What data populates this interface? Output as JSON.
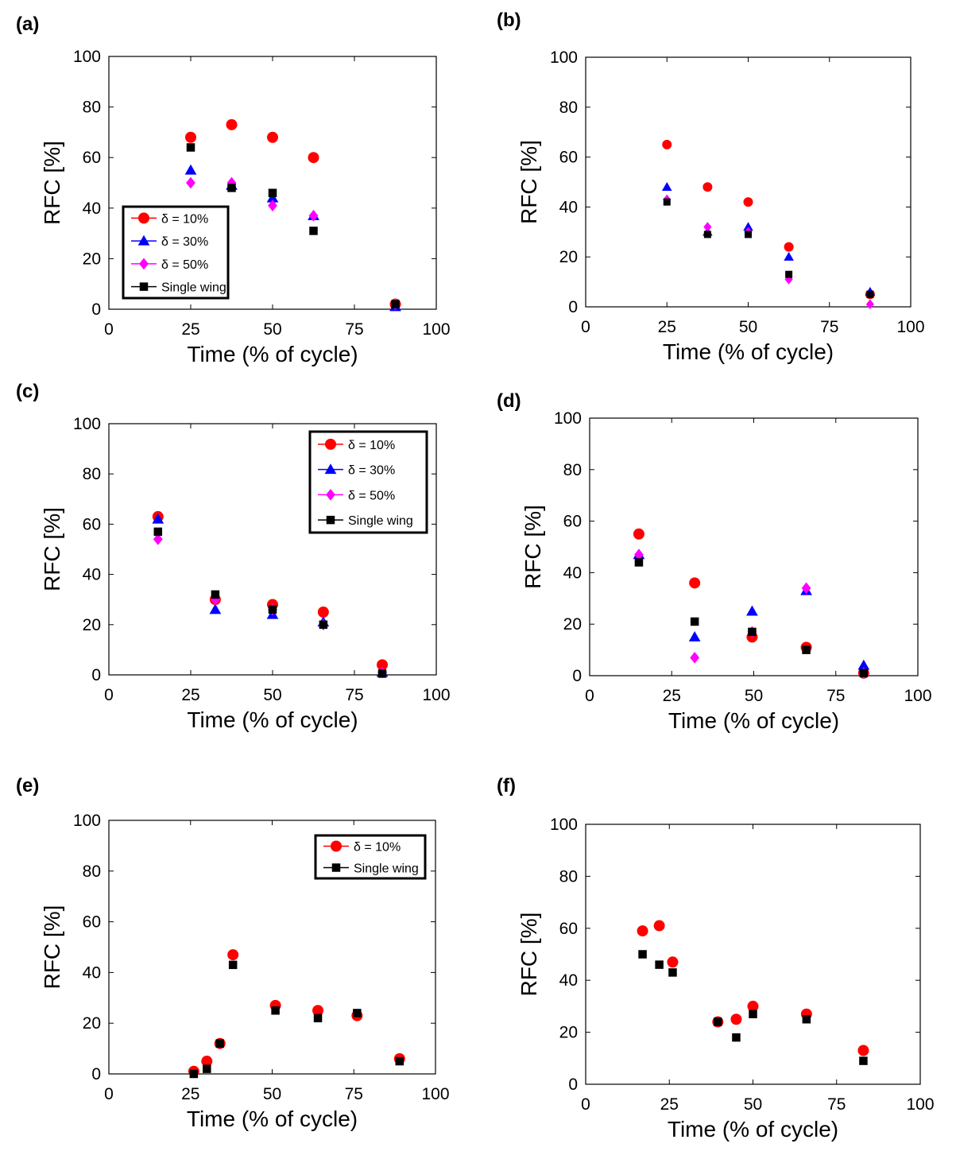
{
  "colors": {
    "delta10": "#ff0000",
    "delta30": "#0000ff",
    "delta50": "#ff00ff",
    "single": "#000000"
  },
  "chart_data": [
    {
      "id": "a",
      "panel_label": "(a)",
      "type": "scatter",
      "xlabel": "Time (% of cycle)",
      "ylabel": "RFC [%]",
      "xlim": [
        0,
        100
      ],
      "ylim": [
        0,
        100
      ],
      "xticks": [
        0,
        25,
        50,
        75,
        100
      ],
      "yticks": [
        0,
        20,
        40,
        60,
        80,
        100
      ],
      "legend_position": "lower-left",
      "series": [
        {
          "name": "δ = 10%",
          "marker": "circle",
          "color_key": "delta10",
          "x": [
            25,
            37.5,
            50,
            62.5,
            87.5
          ],
          "y": [
            68,
            73,
            68,
            60,
            2
          ]
        },
        {
          "name": "δ = 30%",
          "marker": "triangle",
          "color_key": "delta30",
          "x": [
            25,
            37.5,
            50,
            62.5,
            87.5
          ],
          "y": [
            55,
            49,
            44,
            37,
            1
          ]
        },
        {
          "name": "δ = 50%",
          "marker": "diamond",
          "color_key": "delta50",
          "x": [
            25,
            37.5,
            50,
            62.5,
            87.5
          ],
          "y": [
            50,
            50,
            41,
            37,
            2
          ]
        },
        {
          "name": "Single wing",
          "marker": "square",
          "color_key": "single",
          "x": [
            25,
            37.5,
            50,
            62.5,
            87.5
          ],
          "y": [
            64,
            48,
            46,
            31,
            2
          ]
        }
      ]
    },
    {
      "id": "b",
      "panel_label": "(b)",
      "type": "scatter",
      "xlabel": "Time (% of cycle)",
      "ylabel": "RFC [%]",
      "xlim": [
        0,
        100
      ],
      "ylim": [
        0,
        100
      ],
      "xticks": [
        0,
        25,
        50,
        75,
        100
      ],
      "yticks": [
        0,
        20,
        40,
        60,
        80,
        100
      ],
      "legend_position": "none",
      "series": [
        {
          "name": "δ = 10%",
          "marker": "circle",
          "color_key": "delta10",
          "x": [
            25,
            37.5,
            50,
            62.5,
            87.5
          ],
          "y": [
            65,
            48,
            42,
            24,
            5
          ]
        },
        {
          "name": "δ = 30%",
          "marker": "triangle",
          "color_key": "delta30",
          "x": [
            25,
            37.5,
            50,
            62.5,
            87.5
          ],
          "y": [
            48,
            30,
            32,
            20,
            6
          ]
        },
        {
          "name": "δ = 50%",
          "marker": "diamond",
          "color_key": "delta50",
          "x": [
            25,
            37.5,
            50,
            62.5,
            87.5
          ],
          "y": [
            43,
            32,
            30,
            11,
            1
          ]
        },
        {
          "name": "Single wing",
          "marker": "square",
          "color_key": "single",
          "x": [
            25,
            37.5,
            50,
            62.5,
            87.5
          ],
          "y": [
            42,
            29,
            29,
            13,
            5
          ]
        }
      ]
    },
    {
      "id": "c",
      "panel_label": "(c)",
      "type": "scatter",
      "xlabel": "Time (% of cycle)",
      "ylabel": "RFC [%]",
      "xlim": [
        0,
        100
      ],
      "ylim": [
        0,
        100
      ],
      "xticks": [
        0,
        25,
        50,
        75,
        100
      ],
      "yticks": [
        0,
        20,
        40,
        60,
        80,
        100
      ],
      "legend_position": "top-right",
      "series": [
        {
          "name": "δ = 10%",
          "marker": "circle",
          "color_key": "delta10",
          "x": [
            15,
            32.5,
            50,
            65.5,
            83.5
          ],
          "y": [
            63,
            30,
            28,
            25,
            4
          ]
        },
        {
          "name": "δ = 30%",
          "marker": "triangle",
          "color_key": "delta30",
          "x": [
            15,
            32.5,
            50,
            65.5,
            83.5
          ],
          "y": [
            62,
            26,
            24,
            21,
            1
          ]
        },
        {
          "name": "δ = 50%",
          "marker": "diamond",
          "color_key": "delta50",
          "x": [
            15,
            32.5,
            50,
            65.5,
            83.5
          ],
          "y": [
            54,
            30,
            26,
            20,
            1
          ]
        },
        {
          "name": "Single wing",
          "marker": "square",
          "color_key": "single",
          "x": [
            15,
            32.5,
            50,
            65.5,
            83.5
          ],
          "y": [
            57,
            32,
            26,
            20,
            0.5
          ]
        }
      ]
    },
    {
      "id": "d",
      "panel_label": "(d)",
      "type": "scatter",
      "xlabel": "Time (% of cycle)",
      "ylabel": "RFC [%]",
      "xlim": [
        0,
        100
      ],
      "ylim": [
        0,
        100
      ],
      "xticks": [
        0,
        25,
        50,
        75,
        100
      ],
      "yticks": [
        0,
        20,
        40,
        60,
        80,
        100
      ],
      "legend_position": "none",
      "series": [
        {
          "name": "δ = 10%",
          "marker": "circle",
          "color_key": "delta10",
          "x": [
            15,
            32,
            49.5,
            66,
            83.5
          ],
          "y": [
            55,
            36,
            15,
            11,
            1
          ]
        },
        {
          "name": "δ = 30%",
          "marker": "triangle",
          "color_key": "delta30",
          "x": [
            15,
            32,
            49.5,
            66,
            83.5
          ],
          "y": [
            47,
            15,
            25,
            33,
            4
          ]
        },
        {
          "name": "δ = 50%",
          "marker": "diamond",
          "color_key": "delta50",
          "x": [
            15,
            32,
            49.5,
            66,
            83.5
          ],
          "y": [
            47,
            7,
            17,
            34,
            1
          ]
        },
        {
          "name": "Single wing",
          "marker": "square",
          "color_key": "single",
          "x": [
            15,
            32,
            49.5,
            66,
            83.5
          ],
          "y": [
            44,
            21,
            17,
            10,
            1
          ]
        }
      ]
    },
    {
      "id": "e",
      "panel_label": "(e)",
      "type": "scatter",
      "xlabel": "Time (% of cycle)",
      "ylabel": "RFC [%]",
      "xlim": [
        0,
        100
      ],
      "ylim": [
        0,
        100
      ],
      "xticks": [
        0,
        25,
        50,
        75,
        100
      ],
      "yticks": [
        0,
        20,
        40,
        60,
        80,
        100
      ],
      "legend_position": "top-right",
      "series": [
        {
          "name": "δ = 10%",
          "marker": "circle",
          "color_key": "delta10",
          "x": [
            26,
            30,
            34,
            38,
            51,
            64,
            76,
            89
          ],
          "y": [
            1,
            5,
            12,
            47,
            27,
            25,
            23,
            6
          ]
        },
        {
          "name": "Single wing",
          "marker": "square",
          "color_key": "single",
          "x": [
            26,
            30,
            34,
            38,
            51,
            64,
            76,
            89
          ],
          "y": [
            0,
            2,
            12,
            43,
            25,
            22,
            24,
            5
          ]
        }
      ]
    },
    {
      "id": "f",
      "panel_label": "(f)",
      "type": "scatter",
      "xlabel": "Time (% of cycle)",
      "ylabel": "RFC [%]",
      "xlim": [
        0,
        100
      ],
      "ylim": [
        0,
        100
      ],
      "xticks": [
        0,
        25,
        50,
        75,
        100
      ],
      "yticks": [
        0,
        20,
        40,
        60,
        80,
        100
      ],
      "legend_position": "none",
      "series": [
        {
          "name": "δ = 10%",
          "marker": "circle",
          "color_key": "delta10",
          "x": [
            17,
            22,
            26,
            39.5,
            45,
            50,
            66,
            83
          ],
          "y": [
            59,
            61,
            47,
            24,
            25,
            30,
            27,
            13
          ]
        },
        {
          "name": "Single wing",
          "marker": "square",
          "color_key": "single",
          "x": [
            17,
            22,
            26,
            39.5,
            45,
            50,
            66,
            83
          ],
          "y": [
            50,
            46,
            43,
            24,
            18,
            27,
            25,
            9
          ]
        }
      ]
    }
  ]
}
